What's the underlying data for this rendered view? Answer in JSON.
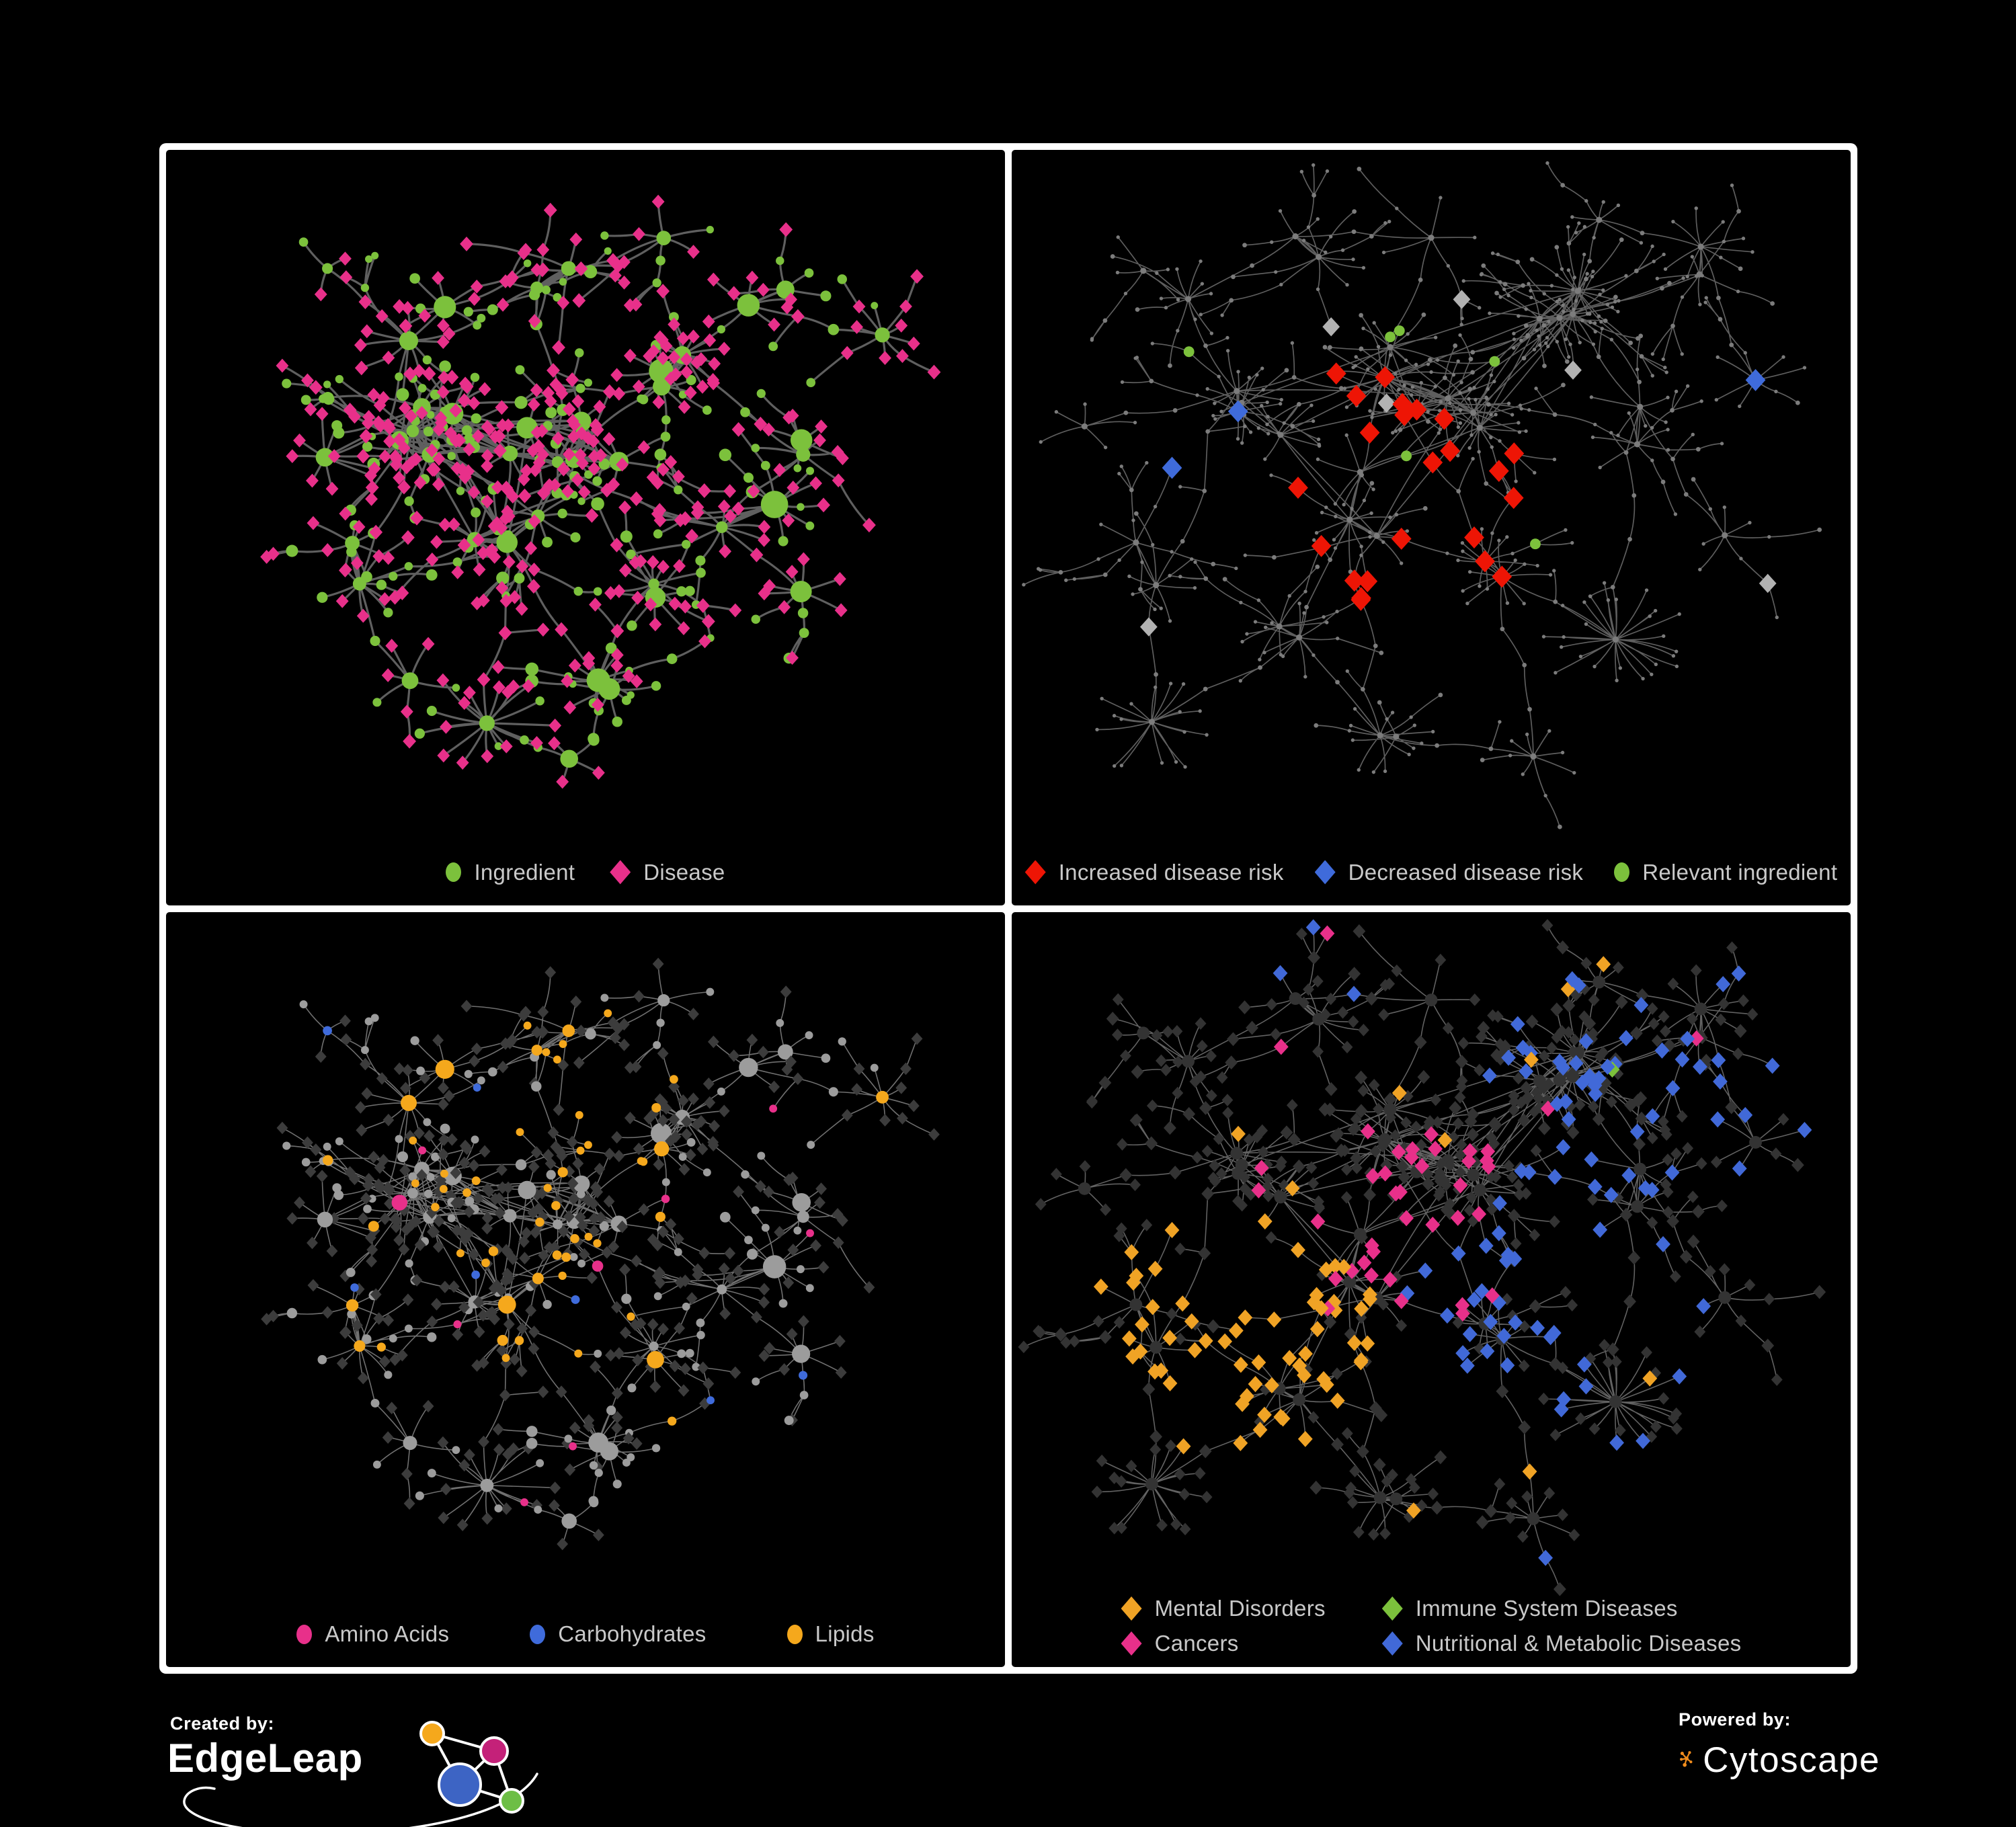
{
  "figure": {
    "background": "#000000",
    "panel_border_color": "#FFFFFF",
    "legend_text_color": "#C9C9C9"
  },
  "chart_data": [
    {
      "type": "network",
      "panel": "top-left",
      "description": "Ingredient-disease association network; green circles are ingredients, pink diamonds are diseases",
      "layout": "A",
      "seed": 11,
      "style_seed": 101,
      "approx_nodes": 480,
      "edge": {
        "color": "#696969",
        "width": 3.2,
        "opacity": 0.9
      },
      "colors": {
        "ingredient": "#7CC13C",
        "disease": "#E8308A"
      },
      "legend": [
        {
          "label": "Ingredient",
          "shape": "circle",
          "color": "#7CC13C"
        },
        {
          "label": "Disease",
          "shape": "diamond",
          "color": "#E8308A"
        }
      ]
    },
    {
      "type": "network",
      "panel": "top-right",
      "description": "Disease-risk view; highlighted diamonds mark increased/decreased disease risk, green circles relevant ingredients",
      "layout": "B",
      "seed": 13,
      "style_seed": 202,
      "approx_nodes": 520,
      "edge": {
        "color": "#6E6E6E",
        "width": 1.7,
        "opacity": 0.85
      },
      "colors": {
        "increased": "#EE1505",
        "decreased": "#3F6BDB",
        "ingredient": "#7CC13C",
        "neutral": "#B2B2B2",
        "plain": "#7C7C7C"
      },
      "legend": [
        {
          "label": "Increased disease risk",
          "shape": "diamond",
          "color": "#EE1505"
        },
        {
          "label": "Decreased disease risk",
          "shape": "diamond",
          "color": "#3F6BDB"
        },
        {
          "label": "Relevant ingredient",
          "shape": "circle",
          "color": "#7CC13C"
        }
      ]
    },
    {
      "type": "network",
      "panel": "bottom-left",
      "description": "Macronutrient view; ingredient circles coloured by nutrient class, diseases dimmed dark diamonds",
      "layout": "A",
      "seed": 11,
      "style_seed": 303,
      "approx_nodes": 480,
      "edge": {
        "color": "#A0A0A0",
        "width": 1.6,
        "opacity": 0.7
      },
      "colors": {
        "amino_acids": "#E8308A",
        "carbohydrates": "#3F6BDB",
        "lipids": "#F5A81C",
        "circle": "#9C9C9C",
        "diamond": "#3C3C3C"
      },
      "legend": [
        {
          "label": "Amino Acids",
          "shape": "circle",
          "color": "#E8308A"
        },
        {
          "label": "Carbohydrates",
          "shape": "circle",
          "color": "#3F6BDB"
        },
        {
          "label": "Lipids",
          "shape": "circle",
          "color": "#F5A81C"
        }
      ]
    },
    {
      "type": "network",
      "panel": "bottom-right",
      "description": "Disease-category view; disease diamonds coloured by category, other nodes dimmed",
      "layout": "B",
      "seed": 13,
      "style_seed": 404,
      "approx_nodes": 520,
      "edge": {
        "color": "#7D7D7D",
        "width": 1.6,
        "opacity": 0.78
      },
      "colors": {
        "mental": "#F0A325",
        "immune": "#7CC13C",
        "cancers": "#E8308A",
        "nutritional": "#4169D8",
        "neutral": "#333333"
      },
      "legend": [
        {
          "label": "Mental Disorders",
          "shape": "diamond",
          "color": "#F0A325"
        },
        {
          "label": "Immune System Diseases",
          "shape": "diamond",
          "color": "#7CC13C"
        },
        {
          "label": "Cancers",
          "shape": "diamond",
          "color": "#E8308A"
        },
        {
          "label": "Nutritional & Metabolic Diseases",
          "shape": "diamond",
          "color": "#4169D8"
        }
      ]
    }
  ],
  "footer": {
    "created_by_label": "Created by:",
    "created_by_brand": "EdgeLeap",
    "powered_by_label": "Powered by:",
    "powered_by_brand": "Cytoscape",
    "edgeleap_colors": {
      "orange": "#F5A81C",
      "magenta": "#C42179",
      "blue": "#3D64C4",
      "green": "#6DBE45"
    },
    "cytoscape_color": "#F08C1D"
  }
}
